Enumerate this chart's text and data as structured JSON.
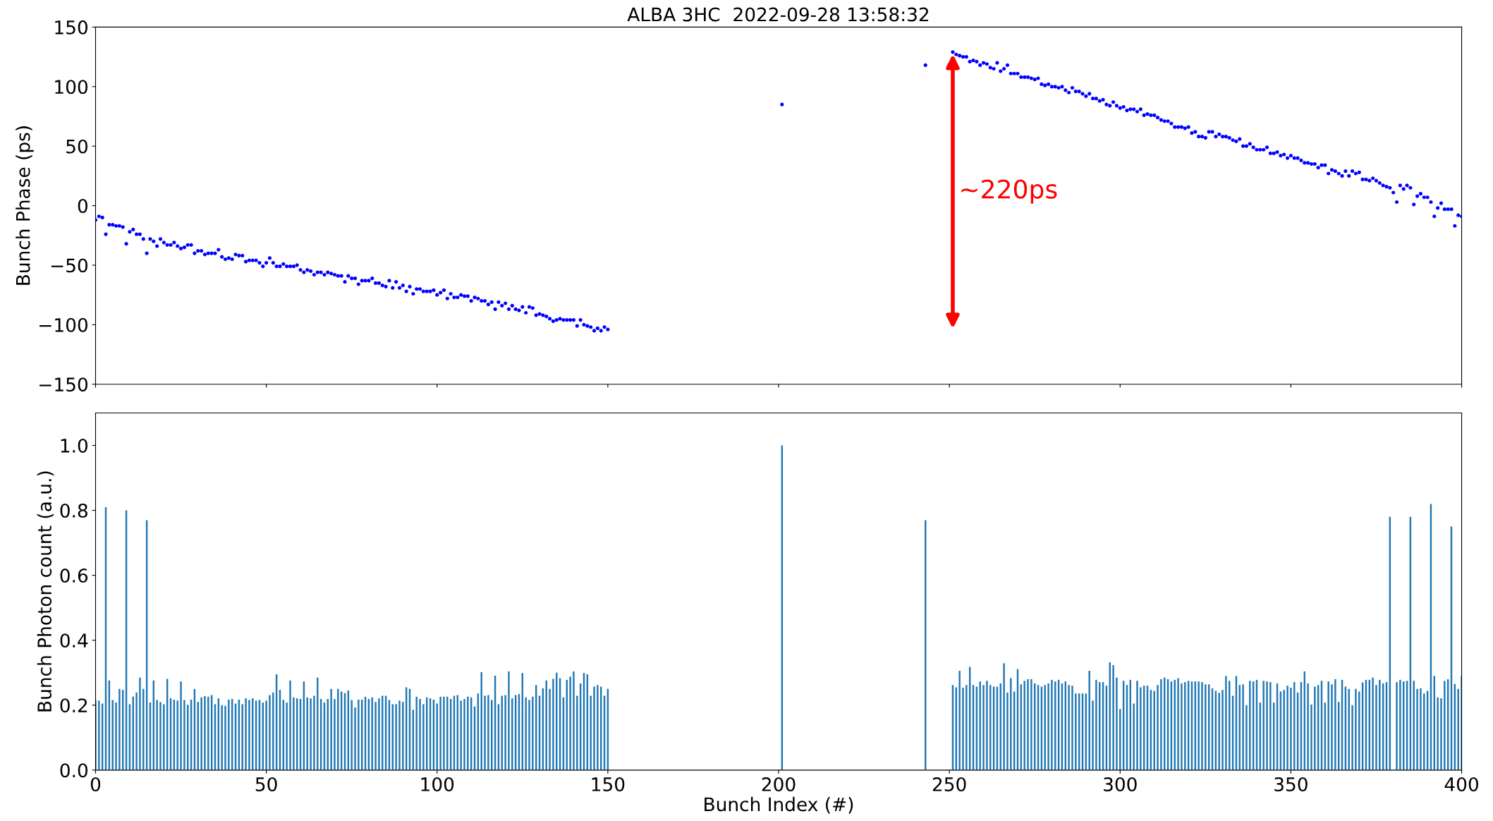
{
  "chart_data": [
    {
      "type": "scatter",
      "title": "ALBA 3HC  2022-09-28 13:58:32",
      "ylabel": "Bunch Phase (ps)",
      "color": "#0000ff",
      "marker": "circle",
      "tick_labels": "y",
      "grid": false,
      "xlim": [
        0,
        400
      ],
      "ylim": [
        -150,
        150
      ],
      "xticks": [
        {
          "value": 0,
          "label": null
        },
        {
          "value": 50,
          "label": null
        },
        {
          "value": 100,
          "label": null
        },
        {
          "value": 150,
          "label": null
        },
        {
          "value": 200,
          "label": null
        },
        {
          "value": 250,
          "label": null
        },
        {
          "value": 300,
          "label": null
        },
        {
          "value": 350,
          "label": null
        },
        {
          "value": 400,
          "label": null
        }
      ],
      "yticks": [
        {
          "value": -150,
          "label": "−150"
        },
        {
          "value": -100,
          "label": "−100"
        },
        {
          "value": -50,
          "label": "−50"
        },
        0,
        50,
        100,
        150
      ],
      "annotations": [
        "~220ps"
      ],
      "x": [
        0,
        1,
        2,
        3,
        4,
        5,
        6,
        7,
        8,
        9,
        10,
        11,
        12,
        13,
        14,
        15,
        16,
        17,
        18,
        19,
        20,
        21,
        22,
        23,
        24,
        25,
        26,
        27,
        28,
        29,
        30,
        31,
        32,
        33,
        34,
        35,
        36,
        37,
        38,
        39,
        40,
        41,
        42,
        43,
        44,
        45,
        46,
        47,
        48,
        49,
        50,
        51,
        52,
        53,
        54,
        55,
        56,
        57,
        58,
        59,
        60,
        61,
        62,
        63,
        64,
        65,
        66,
        67,
        68,
        69,
        70,
        71,
        72,
        73,
        74,
        75,
        76,
        77,
        78,
        79,
        80,
        81,
        82,
        83,
        84,
        85,
        86,
        87,
        88,
        89,
        90,
        91,
        92,
        93,
        94,
        95,
        96,
        97,
        98,
        99,
        100,
        101,
        102,
        103,
        104,
        105,
        106,
        107,
        108,
        109,
        110,
        111,
        112,
        113,
        114,
        115,
        116,
        117,
        118,
        119,
        120,
        121,
        122,
        123,
        124,
        125,
        126,
        127,
        128,
        129,
        130,
        131,
        132,
        133,
        134,
        135,
        136,
        137,
        138,
        139,
        140,
        141,
        142,
        143,
        144,
        145,
        146,
        147,
        148,
        149,
        150,
        201,
        243,
        251,
        252,
        253,
        254,
        255,
        256,
        257,
        258,
        259,
        260,
        261,
        262,
        263,
        264,
        265,
        266,
        267,
        268,
        269,
        270,
        271,
        272,
        273,
        274,
        275,
        276,
        277,
        278,
        279,
        280,
        281,
        282,
        283,
        284,
        285,
        286,
        287,
        288,
        289,
        290,
        291,
        292,
        293,
        294,
        295,
        296,
        297,
        298,
        299,
        300,
        301,
        302,
        303,
        304,
        305,
        306,
        307,
        308,
        309,
        310,
        311,
        312,
        313,
        314,
        315,
        316,
        317,
        318,
        319,
        320,
        321,
        322,
        323,
        324,
        325,
        326,
        327,
        328,
        329,
        330,
        331,
        332,
        333,
        334,
        335,
        336,
        337,
        338,
        339,
        340,
        341,
        342,
        343,
        344,
        345,
        346,
        347,
        348,
        349,
        350,
        351,
        352,
        353,
        354,
        355,
        356,
        357,
        358,
        359,
        360,
        361,
        362,
        363,
        364,
        365,
        366,
        367,
        368,
        369,
        370,
        371,
        372,
        373,
        374,
        375,
        376,
        377,
        378,
        379,
        380,
        381,
        382,
        383,
        384,
        385,
        386,
        387,
        388,
        389,
        390,
        391,
        392,
        393,
        394,
        395,
        396,
        397,
        398,
        399,
        400
      ],
      "values": [
        -12,
        -9,
        -10,
        -24,
        -16,
        -16,
        -17,
        -17,
        -18,
        -32,
        -22,
        -20,
        -24,
        -24,
        -28,
        -40,
        -28,
        -30,
        -34,
        -28,
        -31,
        -33,
        -33,
        -31,
        -34,
        -36,
        -35,
        -33,
        -33,
        -40,
        -38,
        -38,
        -41,
        -40,
        -40,
        -40,
        -37,
        -43,
        -45,
        -44,
        -45,
        -41,
        -42,
        -42,
        -47,
        -46,
        -46,
        -46,
        -48,
        -51,
        -48,
        -44,
        -48,
        -51,
        -51,
        -49,
        -51,
        -51,
        -51,
        -50,
        -54,
        -56,
        -54,
        -55,
        -58,
        -56,
        -56,
        -58,
        -56,
        -57,
        -58,
        -59,
        -59,
        -64,
        -59,
        -61,
        -61,
        -66,
        -63,
        -63,
        -63,
        -61,
        -65,
        -65,
        -67,
        -68,
        -63,
        -69,
        -64,
        -69,
        -67,
        -72,
        -68,
        -74,
        -70,
        -70,
        -72,
        -72,
        -72,
        -71,
        -75,
        -73,
        -71,
        -78,
        -74,
        -77,
        -77,
        -75,
        -76,
        -76,
        -80,
        -77,
        -78,
        -80,
        -80,
        -83,
        -81,
        -87,
        -81,
        -84,
        -82,
        -87,
        -84,
        -87,
        -88,
        -85,
        -90,
        -85,
        -86,
        -92,
        -91,
        -92,
        -93,
        -95,
        -97,
        -96,
        -95,
        -96,
        -96,
        -96,
        -96,
        -101,
        -96,
        -100,
        -101,
        -102,
        -105,
        -103,
        -105,
        -102,
        -104,
        85,
        118,
        129,
        127,
        126,
        125,
        125,
        121,
        122,
        121,
        118,
        120,
        119,
        116,
        115,
        120,
        113,
        115,
        118,
        111,
        111,
        111,
        108,
        108,
        108,
        107,
        106,
        107,
        102,
        101,
        102,
        100,
        100,
        99,
        100,
        97,
        95,
        99,
        96,
        96,
        94,
        92,
        94,
        90,
        90,
        88,
        89,
        85,
        84,
        87,
        84,
        82,
        83,
        80,
        81,
        81,
        79,
        81,
        76,
        77,
        76,
        76,
        74,
        72,
        71,
        71,
        69,
        66,
        66,
        66,
        65,
        66,
        61,
        62,
        58,
        58,
        57,
        62,
        62,
        58,
        60,
        58,
        58,
        57,
        55,
        54,
        56,
        50,
        50,
        52,
        49,
        47,
        47,
        47,
        49,
        44,
        44,
        45,
        42,
        43,
        40,
        42,
        40,
        40,
        38,
        36,
        36,
        35,
        35,
        32,
        34,
        34,
        27,
        30,
        29,
        27,
        25,
        29,
        25,
        29,
        27,
        28,
        22,
        22,
        21,
        23,
        21,
        19,
        17,
        16,
        15,
        11,
        3,
        17,
        14,
        17,
        15,
        1,
        8,
        10,
        7,
        7,
        3,
        -9,
        -2,
        2,
        -3,
        -3,
        -3,
        -17,
        -8,
        -9
      ]
    },
    {
      "type": "bar",
      "xlabel": "Bunch Index (#)",
      "ylabel": "Bunch Photon count (a.u.)",
      "color": "#1f77b4",
      "grid": false,
      "xlim": [
        0,
        400
      ],
      "ylim": [
        0,
        1.1
      ],
      "xticks": [
        0,
        50,
        100,
        150,
        200,
        250,
        300,
        350,
        400
      ],
      "yticks": [
        {
          "value": 0,
          "label": "0.0"
        },
        {
          "value": 0.2,
          "label": "0.2"
        },
        {
          "value": 0.4,
          "label": "0.4"
        },
        {
          "value": 0.6,
          "label": "0.6"
        },
        {
          "value": 0.8,
          "label": "0.8"
        },
        {
          "value": 1.0,
          "label": "1.0"
        }
      ],
      "x": [
        0,
        1,
        2,
        3,
        4,
        5,
        6,
        7,
        8,
        9,
        10,
        11,
        12,
        13,
        14,
        15,
        16,
        17,
        18,
        19,
        20,
        21,
        22,
        23,
        24,
        25,
        26,
        27,
        28,
        29,
        30,
        31,
        32,
        33,
        34,
        35,
        36,
        37,
        38,
        39,
        40,
        41,
        42,
        43,
        44,
        45,
        46,
        47,
        48,
        49,
        50,
        51,
        52,
        53,
        54,
        55,
        56,
        57,
        58,
        59,
        60,
        61,
        62,
        63,
        64,
        65,
        66,
        67,
        68,
        69,
        70,
        71,
        72,
        73,
        74,
        75,
        76,
        77,
        78,
        79,
        80,
        81,
        82,
        83,
        84,
        85,
        86,
        87,
        88,
        89,
        90,
        91,
        92,
        93,
        94,
        95,
        96,
        97,
        98,
        99,
        100,
        101,
        102,
        103,
        104,
        105,
        106,
        107,
        108,
        109,
        110,
        111,
        112,
        113,
        114,
        115,
        116,
        117,
        118,
        119,
        120,
        121,
        122,
        123,
        124,
        125,
        126,
        127,
        128,
        129,
        130,
        131,
        132,
        133,
        134,
        135,
        136,
        137,
        138,
        139,
        140,
        141,
        142,
        143,
        144,
        145,
        146,
        147,
        148,
        149,
        150,
        201,
        243,
        251,
        252,
        253,
        254,
        255,
        256,
        257,
        258,
        259,
        260,
        261,
        262,
        263,
        264,
        265,
        266,
        267,
        268,
        269,
        270,
        271,
        272,
        273,
        274,
        275,
        276,
        277,
        278,
        279,
        280,
        281,
        282,
        283,
        284,
        285,
        286,
        287,
        288,
        289,
        290,
        291,
        292,
        293,
        294,
        295,
        296,
        297,
        298,
        299,
        300,
        301,
        302,
        303,
        304,
        305,
        306,
        307,
        308,
        309,
        310,
        311,
        312,
        313,
        314,
        315,
        316,
        317,
        318,
        319,
        320,
        321,
        322,
        323,
        324,
        325,
        326,
        327,
        328,
        329,
        330,
        331,
        332,
        333,
        334,
        335,
        336,
        337,
        338,
        339,
        340,
        341,
        342,
        343,
        344,
        345,
        346,
        347,
        348,
        349,
        350,
        351,
        352,
        353,
        354,
        355,
        356,
        357,
        358,
        359,
        360,
        361,
        362,
        363,
        364,
        365,
        366,
        367,
        368,
        369,
        370,
        371,
        372,
        373,
        374,
        375,
        376,
        377,
        378,
        379,
        381,
        382,
        383,
        384,
        385,
        386,
        387,
        388,
        389,
        390,
        391,
        392,
        393,
        394,
        395,
        396,
        397,
        398,
        399,
        400
      ],
      "values": [
        0.215,
        0.214,
        0.205,
        0.81,
        0.276,
        0.216,
        0.208,
        0.25,
        0.247,
        0.8,
        0.203,
        0.226,
        0.239,
        0.285,
        0.25,
        0.77,
        0.208,
        0.276,
        0.216,
        0.21,
        0.203,
        0.281,
        0.221,
        0.217,
        0.214,
        0.273,
        0.216,
        0.201,
        0.217,
        0.25,
        0.21,
        0.224,
        0.228,
        0.226,
        0.231,
        0.203,
        0.221,
        0.2,
        0.198,
        0.217,
        0.219,
        0.205,
        0.217,
        0.203,
        0.221,
        0.216,
        0.221,
        0.214,
        0.216,
        0.208,
        0.214,
        0.231,
        0.239,
        0.295,
        0.247,
        0.216,
        0.208,
        0.276,
        0.224,
        0.221,
        0.219,
        0.273,
        0.224,
        0.221,
        0.229,
        0.285,
        0.219,
        0.208,
        0.219,
        0.25,
        0.219,
        0.25,
        0.242,
        0.237,
        0.245,
        0.216,
        0.193,
        0.217,
        0.217,
        0.226,
        0.219,
        0.224,
        0.21,
        0.221,
        0.229,
        0.229,
        0.216,
        0.203,
        0.203,
        0.214,
        0.21,
        0.255,
        0.25,
        0.186,
        0.226,
        0.219,
        0.203,
        0.224,
        0.221,
        0.217,
        0.205,
        0.226,
        0.226,
        0.226,
        0.219,
        0.229,
        0.231,
        0.214,
        0.219,
        0.226,
        0.224,
        0.196,
        0.236,
        0.302,
        0.229,
        0.231,
        0.216,
        0.291,
        0.203,
        0.229,
        0.231,
        0.304,
        0.221,
        0.231,
        0.234,
        0.299,
        0.224,
        0.216,
        0.226,
        0.262,
        0.229,
        0.252,
        0.276,
        0.25,
        0.281,
        0.3,
        0.283,
        0.224,
        0.278,
        0.288,
        0.304,
        0.229,
        0.267,
        0.299,
        0.295,
        0.229,
        0.257,
        0.262,
        0.257,
        0.229,
        0.25,
        1.0,
        0.77,
        0.262,
        0.255,
        0.306,
        0.254,
        0.262,
        0.318,
        0.262,
        0.257,
        0.273,
        0.262,
        0.275,
        0.262,
        0.257,
        0.257,
        0.267,
        0.329,
        0.239,
        0.283,
        0.242,
        0.311,
        0.264,
        0.275,
        0.28,
        0.28,
        0.267,
        0.262,
        0.257,
        0.262,
        0.267,
        0.278,
        0.273,
        0.278,
        0.267,
        0.273,
        0.262,
        0.26,
        0.236,
        0.236,
        0.236,
        0.236,
        0.306,
        0.214,
        0.278,
        0.271,
        0.271,
        0.26,
        0.332,
        0.323,
        0.285,
        0.188,
        0.275,
        0.262,
        0.278,
        0.205,
        0.275,
        0.255,
        0.26,
        0.26,
        0.247,
        0.244,
        0.262,
        0.28,
        0.285,
        0.28,
        0.273,
        0.278,
        0.283,
        0.267,
        0.271,
        0.275,
        0.273,
        0.273,
        0.273,
        0.271,
        0.264,
        0.264,
        0.252,
        0.244,
        0.238,
        0.247,
        0.29,
        0.275,
        0.229,
        0.29,
        0.262,
        0.264,
        0.2,
        0.275,
        0.273,
        0.278,
        0.208,
        0.275,
        0.273,
        0.271,
        0.208,
        0.267,
        0.242,
        0.247,
        0.26,
        0.254,
        0.271,
        0.239,
        0.271,
        0.304,
        0.267,
        0.202,
        0.257,
        0.262,
        0.275,
        0.208,
        0.273,
        0.264,
        0.28,
        0.21,
        0.278,
        0.257,
        0.25,
        0.2,
        0.25,
        0.242,
        0.27,
        0.278,
        0.278,
        0.285,
        0.262,
        0.278,
        0.267,
        0.271,
        0.78,
        0.271,
        0.278,
        0.273,
        0.275,
        0.78,
        0.275,
        0.25,
        0.252,
        0.236,
        0.244,
        0.82,
        0.29,
        0.224,
        0.221,
        0.275,
        0.28,
        0.75,
        0.265,
        0.25,
        0.29
      ]
    }
  ]
}
